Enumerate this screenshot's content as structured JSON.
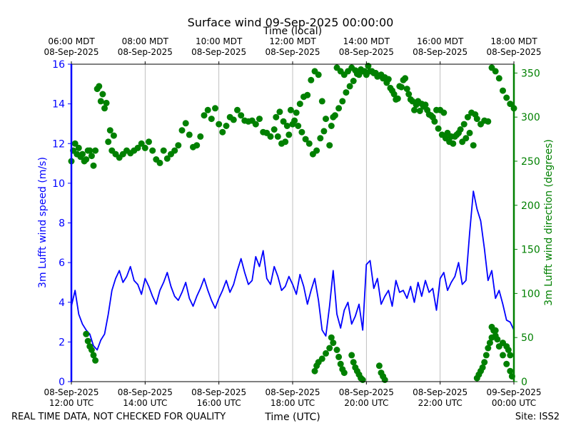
{
  "chart_data": {
    "type": "line",
    "title": "Surface wind 09-Sep-2025 00:00:00",
    "top_axis_label": "Time (local)",
    "top_ticks": [
      {
        "time": "06:00 MDT",
        "date": "08-Sep-2025"
      },
      {
        "time": "08:00 MDT",
        "date": "08-Sep-2025"
      },
      {
        "time": "10:00 MDT",
        "date": "08-Sep-2025"
      },
      {
        "time": "12:00 MDT",
        "date": "08-Sep-2025"
      },
      {
        "time": "14:00 MDT",
        "date": "08-Sep-2025"
      },
      {
        "time": "16:00 MDT",
        "date": "08-Sep-2025"
      },
      {
        "time": "18:00 MDT",
        "date": "08-Sep-2025"
      }
    ],
    "x_ticks": [
      {
        "date": "08-Sep-2025",
        "time": "12:00 UTC"
      },
      {
        "date": "08-Sep-2025",
        "time": "14:00 UTC"
      },
      {
        "date": "08-Sep-2025",
        "time": "16:00 UTC"
      },
      {
        "date": "08-Sep-2025",
        "time": "18:00 UTC"
      },
      {
        "date": "08-Sep-2025",
        "time": "20:00 UTC"
      },
      {
        "date": "08-Sep-2025",
        "time": "22:00 UTC"
      },
      {
        "date": "09-Sep-2025",
        "time": "00:00 UTC"
      }
    ],
    "xlabel": "Time (UTC)",
    "xlim_hours_utc": [
      12,
      24
    ],
    "grid": "vertical",
    "left_axis": {
      "label": "3m Lufft wind speed (m/s)",
      "color": "#0000ff",
      "range": [
        0,
        16
      ],
      "ticks": [
        "0",
        "2",
        "4",
        "6",
        "8",
        "10",
        "12",
        "14",
        "16"
      ]
    },
    "right_axis": {
      "label": "3m Lufft wind direction (degrees)",
      "color": "#008000",
      "range": [
        0,
        360
      ],
      "ticks": [
        "0",
        "50",
        "100",
        "150",
        "200",
        "250",
        "300",
        "350"
      ]
    },
    "series": [
      {
        "kind": "line",
        "axis": "left",
        "color": "#0000ff",
        "x": [
          12.0,
          12.1,
          12.2,
          12.3,
          12.4,
          12.5,
          12.6,
          12.7,
          12.8,
          12.9,
          13.0,
          13.1,
          13.2,
          13.3,
          13.4,
          13.5,
          13.6,
          13.7,
          13.8,
          13.9,
          14.0,
          14.1,
          14.2,
          14.3,
          14.4,
          14.5,
          14.6,
          14.7,
          14.8,
          14.9,
          15.0,
          15.1,
          15.2,
          15.3,
          15.4,
          15.5,
          15.6,
          15.7,
          15.8,
          15.9,
          16.0,
          16.1,
          16.2,
          16.3,
          16.4,
          16.5,
          16.6,
          16.7,
          16.8,
          16.9,
          17.0,
          17.1,
          17.2,
          17.3,
          17.4,
          17.5,
          17.6,
          17.7,
          17.8,
          17.9,
          18.0,
          18.1,
          18.2,
          18.3,
          18.4,
          18.5,
          18.6,
          18.7,
          18.8,
          18.9,
          19.0,
          19.1,
          19.2,
          19.3,
          19.4,
          19.5,
          19.6,
          19.7,
          19.8,
          19.9,
          20.0,
          20.1,
          20.2,
          20.3,
          20.4,
          20.5,
          20.6,
          20.7,
          20.8,
          20.9,
          21.0,
          21.1,
          21.2,
          21.3,
          21.4,
          21.5,
          21.6,
          21.7,
          21.8,
          21.9,
          22.0,
          22.1,
          22.2,
          22.3,
          22.4,
          22.5,
          22.6,
          22.7,
          22.8,
          22.9,
          23.0,
          23.1,
          23.2,
          23.3,
          23.4,
          23.5,
          23.6,
          23.7,
          23.8,
          23.9,
          24.0
        ],
        "y": [
          3.8,
          4.6,
          3.4,
          2.9,
          2.6,
          2.4,
          1.8,
          1.6,
          2.1,
          2.4,
          3.4,
          4.6,
          5.2,
          5.6,
          5.0,
          5.3,
          5.8,
          5.1,
          4.9,
          4.4,
          5.2,
          4.8,
          4.3,
          3.9,
          4.6,
          5.0,
          5.5,
          4.8,
          4.3,
          4.1,
          4.5,
          5.0,
          4.2,
          3.8,
          4.3,
          4.7,
          5.2,
          4.6,
          4.1,
          3.7,
          4.2,
          4.6,
          5.1,
          4.5,
          4.9,
          5.6,
          6.2,
          5.5,
          4.9,
          5.1,
          6.3,
          5.8,
          6.6,
          5.2,
          4.9,
          5.8,
          5.3,
          4.6,
          4.8,
          5.3,
          4.9,
          4.4,
          5.4,
          4.8,
          3.9,
          4.6,
          5.2,
          4.1,
          2.6,
          2.3,
          3.8,
          5.6,
          3.4,
          2.7,
          3.6,
          4.0,
          2.9,
          3.3,
          3.9,
          2.6,
          5.9,
          6.1,
          4.7,
          5.2,
          3.9,
          4.3,
          4.6,
          3.8,
          5.1,
          4.5,
          4.6,
          4.2,
          4.8,
          4.0,
          5.0,
          4.3,
          5.1,
          4.5,
          4.7,
          3.6,
          5.2,
          5.5,
          4.6,
          5.0,
          5.3,
          6.0,
          4.9,
          5.1,
          7.5,
          9.6,
          8.7,
          8.1,
          6.7,
          5.1,
          5.6,
          4.2,
          4.6,
          3.9,
          3.1,
          3.0,
          2.6
        ]
      },
      {
        "kind": "scatter",
        "axis": "right",
        "color": "#008000",
        "x": [
          12.0,
          12.1,
          12.2,
          12.3,
          12.4,
          12.5,
          12.6,
          12.7,
          12.8,
          12.9,
          13.0,
          13.1,
          13.2,
          13.3,
          13.4,
          13.5,
          13.6,
          13.7,
          13.8,
          13.9,
          14.0,
          14.1,
          14.2,
          14.3,
          14.4,
          14.5,
          14.6,
          14.7,
          14.8,
          14.9,
          15.0,
          15.1,
          15.2,
          15.3,
          15.4,
          15.5,
          15.6,
          15.7,
          15.8,
          15.9,
          16.0,
          16.1,
          16.2,
          16.3,
          16.4,
          16.5,
          16.6,
          16.7,
          16.8,
          16.9,
          17.0,
          17.1,
          17.2,
          17.3,
          17.4,
          17.5,
          17.6,
          17.7,
          17.8,
          17.9,
          18.0,
          18.1,
          18.2,
          18.3,
          18.4,
          18.5,
          18.6,
          18.7,
          18.8,
          18.9,
          19.0,
          19.1,
          19.2,
          19.3,
          19.4,
          19.5,
          19.6,
          19.7,
          19.8,
          19.9,
          20.0,
          20.1,
          20.2,
          20.3,
          20.4,
          20.5,
          20.6,
          20.7,
          20.8,
          20.9,
          21.0,
          21.1,
          21.2,
          21.3,
          21.4,
          21.5,
          21.6,
          21.7,
          21.8,
          21.9,
          22.0,
          22.1,
          22.2,
          22.3,
          22.4,
          22.5,
          22.6,
          22.7,
          22.8,
          22.9,
          23.0,
          23.1,
          23.2,
          23.3,
          23.4,
          23.5,
          23.6,
          23.7,
          23.8,
          23.9,
          24.0,
          12.05,
          12.15,
          12.25,
          12.35,
          12.45,
          12.55,
          12.65,
          12.75,
          12.85,
          12.95,
          13.05,
          13.15,
          17.55,
          17.65,
          17.75,
          17.85,
          17.95,
          18.05,
          18.15,
          18.25,
          18.35,
          18.45,
          18.55,
          18.65,
          18.75,
          18.85,
          19.05,
          19.15,
          19.25,
          19.35,
          19.45,
          19.55,
          19.65,
          19.75,
          19.85,
          19.95,
          20.05,
          20.15,
          20.25,
          20.35,
          20.45,
          20.55,
          20.65,
          20.75,
          20.85,
          20.95,
          21.05,
          21.15,
          21.25,
          21.35,
          21.45,
          21.55,
          21.65,
          21.75,
          21.85,
          21.95,
          22.05,
          22.15,
          22.25,
          22.35,
          22.45,
          22.55,
          22.65,
          22.75,
          22.85,
          22.95,
          18.6,
          18.65,
          18.7,
          18.8,
          18.9,
          19.0,
          19.05,
          19.1,
          19.2,
          19.25,
          19.3,
          19.35,
          19.4,
          19.6,
          19.65,
          19.7,
          19.75,
          19.8,
          19.85,
          19.9,
          20.35,
          20.4,
          20.45,
          20.5,
          23.0,
          23.05,
          23.1,
          23.15,
          23.2,
          23.25,
          23.3,
          23.35,
          23.4,
          23.5,
          23.6,
          23.7,
          23.8,
          23.9,
          23.95,
          12.4,
          12.45,
          12.5,
          12.55,
          12.6,
          12.65,
          23.4,
          23.45,
          23.5,
          23.55,
          23.7,
          23.8,
          23.85,
          23.9
        ],
        "y": [
          250,
          270,
          265,
          258,
          252,
          262,
          245,
          332,
          318,
          310,
          272,
          262,
          258,
          254,
          258,
          262,
          259,
          262,
          265,
          270,
          265,
          272,
          262,
          252,
          248,
          262,
          253,
          258,
          262,
          268,
          285,
          293,
          280,
          266,
          268,
          278,
          302,
          308,
          298,
          310,
          292,
          283,
          290,
          300,
          297,
          308,
          302,
          296,
          295,
          296,
          292,
          298,
          283,
          282,
          278,
          286,
          278,
          270,
          272,
          280,
          292,
          305,
          315,
          323,
          325,
          342,
          352,
          348,
          318,
          298,
          268,
          300,
          356,
          352,
          348,
          352,
          356,
          353,
          348,
          352,
          348,
          352,
          350,
          346,
          348,
          345,
          343,
          330,
          320,
          335,
          342,
          332,
          320,
          308,
          318,
          315,
          314,
          303,
          300,
          308,
          308,
          305,
          282,
          278,
          278,
          282,
          272,
          276,
          282,
          268,
          298,
          292,
          296,
          295,
          356,
          352,
          344,
          330,
          322,
          315,
          310,
          262,
          258,
          255,
          250,
          262,
          256,
          262,
          335,
          326,
          316,
          285,
          279,
          300,
          306,
          295,
          290,
          308,
          296,
          290,
          283,
          275,
          270,
          258,
          262,
          276,
          284,
          290,
          302,
          310,
          318,
          328,
          335,
          341,
          349,
          354,
          352,
          358,
          352,
          350,
          347,
          344,
          339,
          333,
          326,
          321,
          334,
          344,
          326,
          318,
          314,
          307,
          312,
          308,
          302,
          295,
          287,
          280,
          276,
          272,
          270,
          280,
          286,
          292,
          300,
          305,
          303,
          12,
          18,
          22,
          26,
          32,
          38,
          50,
          44,
          36,
          28,
          20,
          14,
          10,
          30,
          22,
          16,
          12,
          8,
          4,
          2,
          18,
          10,
          6,
          2,
          4,
          8,
          12,
          16,
          22,
          30,
          38,
          44,
          50,
          58,
          40,
          30,
          20,
          12,
          6,
          54,
          46,
          40,
          36,
          30,
          24,
          62,
          58,
          52,
          48,
          44,
          40,
          36,
          30
        ]
      }
    ]
  },
  "footer": {
    "left": "REAL TIME DATA, NOT CHECKED FOR QUALITY",
    "right": "Site: ISS2"
  }
}
